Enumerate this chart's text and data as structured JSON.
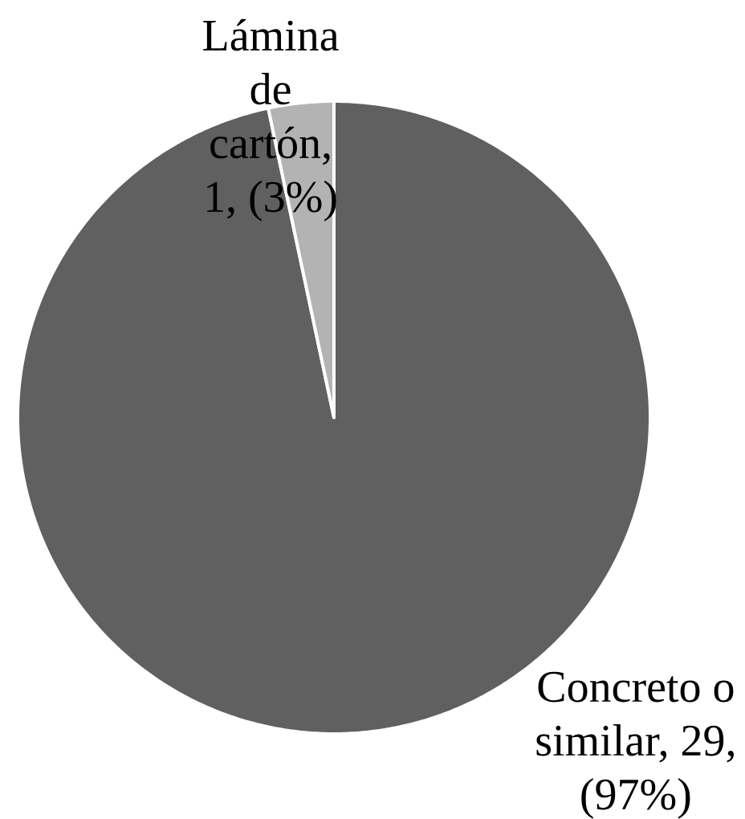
{
  "chart_data": {
    "type": "pie",
    "categories": [
      null,
      null
    ],
    "values": [
      29,
      1
    ],
    "colors": [
      "#606060",
      "#b3b3b3"
    ],
    "value_labels": [
      "Concreto o similar, 29, (97%)",
      "Lámina de cartón, 1, (3%)"
    ]
  }
}
